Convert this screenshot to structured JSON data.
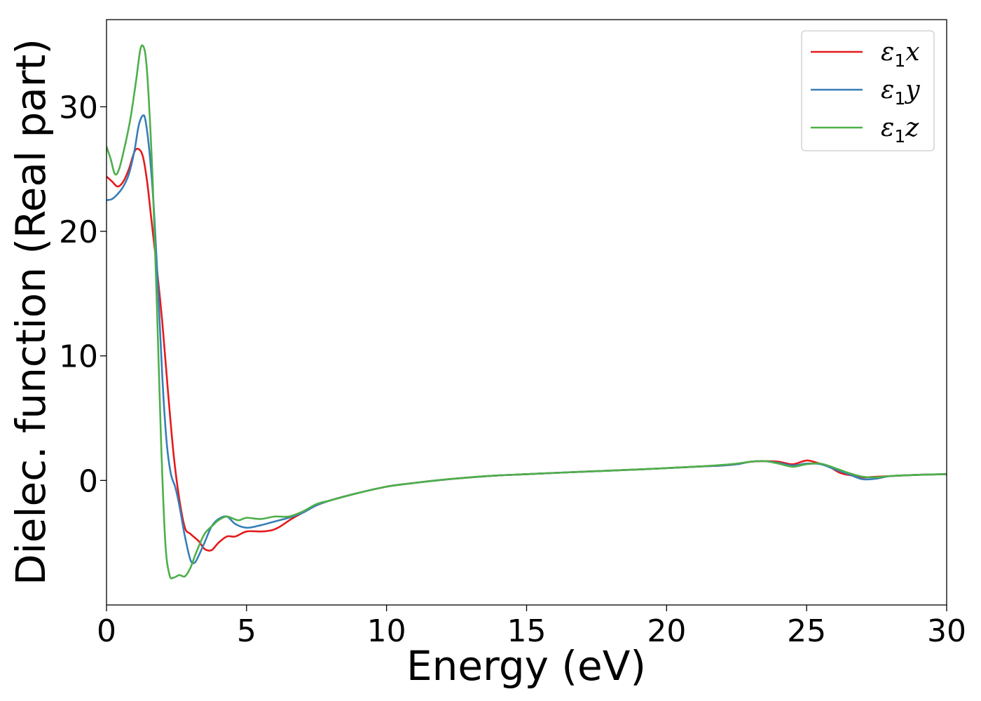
{
  "chart_data": {
    "type": "line",
    "xlabel": "Energy (eV)",
    "ylabel": "Dielec. function (Real part)",
    "xlim": [
      0,
      30
    ],
    "ylim": [
      -10,
      37
    ],
    "xticks": [
      0,
      5,
      10,
      15,
      20,
      25,
      30
    ],
    "yticks": [
      0,
      10,
      20,
      30
    ],
    "grid": false,
    "legend_position": "top-right",
    "series": [
      {
        "name": "ε1x",
        "legend_symbol": "ε",
        "legend_sub": "1",
        "legend_var": "x",
        "color": "#e41a1c",
        "points": [
          [
            0,
            24.4
          ],
          [
            0.2,
            24.0
          ],
          [
            0.4,
            23.6
          ],
          [
            0.6,
            24.0
          ],
          [
            0.8,
            25.0
          ],
          [
            1.0,
            26.4
          ],
          [
            1.15,
            26.6
          ],
          [
            1.3,
            26.0
          ],
          [
            1.45,
            24.0
          ],
          [
            1.6,
            21.0
          ],
          [
            1.8,
            17.0
          ],
          [
            2.0,
            12.5
          ],
          [
            2.2,
            7.0
          ],
          [
            2.4,
            2.0
          ],
          [
            2.6,
            -1.5
          ],
          [
            2.8,
            -3.8
          ],
          [
            3.0,
            -4.3
          ],
          [
            3.3,
            -4.9
          ],
          [
            3.5,
            -5.5
          ],
          [
            3.75,
            -5.6
          ],
          [
            4.0,
            -5.0
          ],
          [
            4.3,
            -4.5
          ],
          [
            4.6,
            -4.5
          ],
          [
            5.0,
            -4.1
          ],
          [
            5.5,
            -4.1
          ],
          [
            5.9,
            -4.0
          ],
          [
            6.2,
            -3.7
          ],
          [
            6.6,
            -3.1
          ],
          [
            7.0,
            -2.6
          ],
          [
            7.5,
            -2.0
          ],
          [
            8.0,
            -1.6
          ],
          [
            9.0,
            -1.0
          ],
          [
            10.0,
            -0.5
          ],
          [
            11.0,
            -0.2
          ],
          [
            12.0,
            0.05
          ],
          [
            13.0,
            0.25
          ],
          [
            14.0,
            0.4
          ],
          [
            15.0,
            0.5
          ],
          [
            17.0,
            0.7
          ],
          [
            19.0,
            0.88
          ],
          [
            21.0,
            1.1
          ],
          [
            22.0,
            1.2
          ],
          [
            22.5,
            1.3
          ],
          [
            23.0,
            1.5
          ],
          [
            23.5,
            1.55
          ],
          [
            24.0,
            1.5
          ],
          [
            24.5,
            1.3
          ],
          [
            25.0,
            1.6
          ],
          [
            25.4,
            1.4
          ],
          [
            25.8,
            1.1
          ],
          [
            26.2,
            0.6
          ],
          [
            26.6,
            0.4
          ],
          [
            27.0,
            0.25
          ],
          [
            27.5,
            0.3
          ],
          [
            28.0,
            0.35
          ],
          [
            29.0,
            0.45
          ],
          [
            30.0,
            0.5
          ]
        ]
      },
      {
        "name": "ε1y",
        "legend_symbol": "ε",
        "legend_sub": "1",
        "legend_var": "y",
        "color": "#377eb8",
        "points": [
          [
            0,
            22.5
          ],
          [
            0.2,
            22.6
          ],
          [
            0.4,
            23.0
          ],
          [
            0.6,
            23.6
          ],
          [
            0.8,
            24.6
          ],
          [
            1.0,
            26.5
          ],
          [
            1.15,
            28.5
          ],
          [
            1.3,
            29.3
          ],
          [
            1.4,
            28.8
          ],
          [
            1.55,
            26.0
          ],
          [
            1.7,
            21.5
          ],
          [
            1.85,
            15.0
          ],
          [
            2.0,
            8.0
          ],
          [
            2.15,
            3.0
          ],
          [
            2.3,
            0.5
          ],
          [
            2.45,
            -0.5
          ],
          [
            2.6,
            -2.0
          ],
          [
            2.8,
            -4.5
          ],
          [
            3.0,
            -6.4
          ],
          [
            3.15,
            -6.6
          ],
          [
            3.3,
            -6.0
          ],
          [
            3.5,
            -5.0
          ],
          [
            3.75,
            -3.7
          ],
          [
            4.0,
            -3.1
          ],
          [
            4.3,
            -2.9
          ],
          [
            4.6,
            -3.5
          ],
          [
            5.0,
            -3.8
          ],
          [
            5.5,
            -3.6
          ],
          [
            6.0,
            -3.3
          ],
          [
            6.5,
            -3.0
          ],
          [
            7.0,
            -2.6
          ],
          [
            7.5,
            -2.0
          ],
          [
            8.0,
            -1.6
          ],
          [
            9.0,
            -1.0
          ],
          [
            10.0,
            -0.5
          ],
          [
            11.0,
            -0.2
          ],
          [
            12.0,
            0.05
          ],
          [
            13.0,
            0.25
          ],
          [
            14.0,
            0.4
          ],
          [
            15.0,
            0.5
          ],
          [
            17.0,
            0.7
          ],
          [
            19.0,
            0.88
          ],
          [
            21.0,
            1.1
          ],
          [
            22.0,
            1.2
          ],
          [
            22.5,
            1.3
          ],
          [
            23.0,
            1.5
          ],
          [
            23.5,
            1.55
          ],
          [
            24.0,
            1.4
          ],
          [
            24.5,
            1.2
          ],
          [
            25.0,
            1.35
          ],
          [
            25.5,
            1.3
          ],
          [
            26.0,
            0.9
          ],
          [
            26.5,
            0.5
          ],
          [
            27.0,
            0.1
          ],
          [
            27.5,
            0.15
          ],
          [
            28.0,
            0.35
          ],
          [
            29.0,
            0.45
          ],
          [
            30.0,
            0.5
          ]
        ]
      },
      {
        "name": "ε1z",
        "legend_symbol": "ε",
        "legend_sub": "1",
        "legend_var": "z",
        "color": "#4daf4a",
        "points": [
          [
            0,
            26.8
          ],
          [
            0.15,
            25.8
          ],
          [
            0.3,
            24.6
          ],
          [
            0.45,
            25.0
          ],
          [
            0.65,
            26.8
          ],
          [
            0.85,
            29.0
          ],
          [
            1.05,
            32.0
          ],
          [
            1.2,
            34.5
          ],
          [
            1.3,
            34.9
          ],
          [
            1.4,
            34.0
          ],
          [
            1.5,
            31.0
          ],
          [
            1.65,
            24.0
          ],
          [
            1.8,
            14.0
          ],
          [
            1.95,
            3.0
          ],
          [
            2.1,
            -5.0
          ],
          [
            2.25,
            -7.6
          ],
          [
            2.4,
            -7.8
          ],
          [
            2.6,
            -7.6
          ],
          [
            2.8,
            -7.7
          ],
          [
            3.0,
            -7.0
          ],
          [
            3.2,
            -5.8
          ],
          [
            3.5,
            -4.3
          ],
          [
            3.8,
            -3.6
          ],
          [
            4.0,
            -3.2
          ],
          [
            4.3,
            -2.9
          ],
          [
            4.7,
            -3.2
          ],
          [
            5.0,
            -3.0
          ],
          [
            5.5,
            -3.1
          ],
          [
            6.0,
            -2.9
          ],
          [
            6.5,
            -2.9
          ],
          [
            7.0,
            -2.5
          ],
          [
            7.5,
            -1.9
          ],
          [
            8.0,
            -1.6
          ],
          [
            9.0,
            -1.0
          ],
          [
            10.0,
            -0.5
          ],
          [
            11.0,
            -0.2
          ],
          [
            12.0,
            0.05
          ],
          [
            13.0,
            0.25
          ],
          [
            14.0,
            0.4
          ],
          [
            15.0,
            0.5
          ],
          [
            17.0,
            0.7
          ],
          [
            19.0,
            0.88
          ],
          [
            21.0,
            1.1
          ],
          [
            22.0,
            1.25
          ],
          [
            22.5,
            1.35
          ],
          [
            23.0,
            1.5
          ],
          [
            23.5,
            1.55
          ],
          [
            24.0,
            1.35
          ],
          [
            24.5,
            1.1
          ],
          [
            25.0,
            1.3
          ],
          [
            25.5,
            1.35
          ],
          [
            26.0,
            1.0
          ],
          [
            26.5,
            0.6
          ],
          [
            27.0,
            0.3
          ],
          [
            27.5,
            0.25
          ],
          [
            28.0,
            0.35
          ],
          [
            29.0,
            0.45
          ],
          [
            30.0,
            0.5
          ]
        ]
      }
    ]
  }
}
